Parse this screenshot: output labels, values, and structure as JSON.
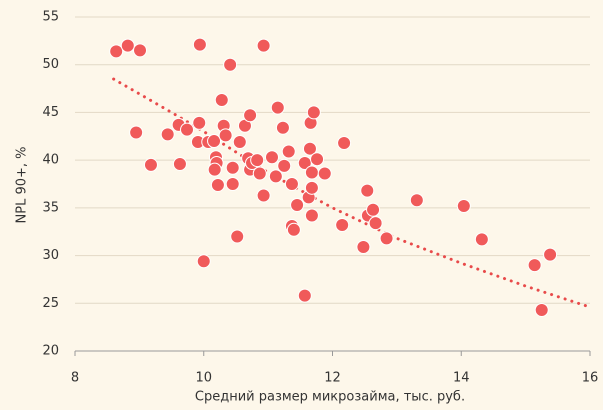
{
  "chart_data": {
    "type": "scatter",
    "xlabel": "Средний размер микрозайма, тыс. руб.",
    "ylabel": "NPL 90+, %",
    "x": [
      8.64,
      8.82,
      9.01,
      9.18,
      8.95,
      9.44,
      9.61,
      9.74,
      9.63,
      9.94,
      9.93,
      9.91,
      10.07,
      10.0,
      10.16,
      10.19,
      10.2,
      10.17,
      10.22,
      10.28,
      10.31,
      10.34,
      10.41,
      10.45,
      10.45,
      10.52,
      10.56,
      10.64,
      10.72,
      10.69,
      10.72,
      10.75,
      10.83,
      10.87,
      10.93,
      10.93,
      11.06,
      11.12,
      11.15,
      11.23,
      11.25,
      11.32,
      11.37,
      11.37,
      11.4,
      11.45,
      11.57,
      11.57,
      11.63,
      11.65,
      11.66,
      11.71,
      11.68,
      11.68,
      11.68,
      11.76,
      11.88,
      12.15,
      12.18,
      12.48,
      12.54,
      12.55,
      12.63,
      12.67,
      12.84,
      13.31,
      14.04,
      14.32,
      15.14,
      15.25,
      15.38
    ],
    "y": [
      51.4,
      52.0,
      51.5,
      39.5,
      42.9,
      42.7,
      43.7,
      43.2,
      39.6,
      52.1,
      43.9,
      41.9,
      41.9,
      29.4,
      42.0,
      40.3,
      39.7,
      39.0,
      37.4,
      46.3,
      43.6,
      42.6,
      50.0,
      39.2,
      37.5,
      32.0,
      41.9,
      43.6,
      44.7,
      40.2,
      39.0,
      39.7,
      40.0,
      38.6,
      52.0,
      36.3,
      40.3,
      38.3,
      45.5,
      43.4,
      39.4,
      40.9,
      37.5,
      33.1,
      32.7,
      35.3,
      39.7,
      25.8,
      36.1,
      41.2,
      43.9,
      45.0,
      38.7,
      37.1,
      34.2,
      40.1,
      38.6,
      33.2,
      41.8,
      30.9,
      36.8,
      34.2,
      34.8,
      33.4,
      31.8,
      35.8,
      35.2,
      31.7,
      29.0,
      24.3,
      30.1
    ],
    "color": "#f05a5a",
    "trend": {
      "x": [
        8.6,
        9.5,
        10,
        11,
        12,
        13,
        14,
        15,
        16
      ],
      "y": [
        48.5,
        45,
        43,
        38.7,
        35,
        31.8,
        29.2,
        26.8,
        24.6
      ],
      "color": "#e84a4a"
    },
    "xlim": [
      8,
      16
    ],
    "xticks": [
      8,
      10,
      12,
      14,
      16
    ],
    "ylim": [
      20,
      55
    ],
    "yticks": [
      20,
      25,
      30,
      35,
      40,
      45,
      50,
      55
    ],
    "grid": true
  }
}
